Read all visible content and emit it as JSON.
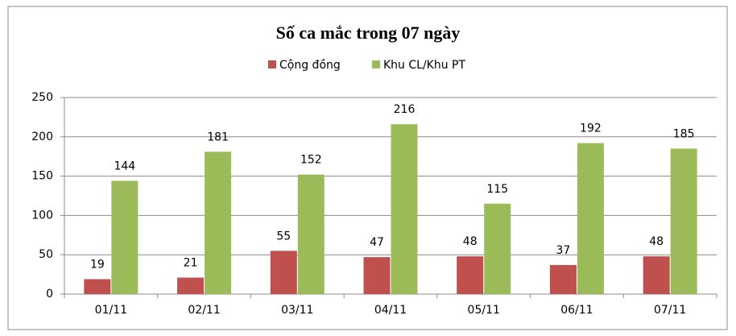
{
  "chart_data": {
    "type": "bar",
    "title": "Số ca mắc trong 07 ngày",
    "categories": [
      "01/11",
      "02/11",
      "03/11",
      "04/11",
      "05/11",
      "06/11",
      "07/11"
    ],
    "series": [
      {
        "name": "Cộng đồng",
        "color": "#c0504d",
        "values": [
          19,
          21,
          55,
          47,
          48,
          37,
          48
        ]
      },
      {
        "name": "Khu CL/Khu PT",
        "color": "#9bbb59",
        "values": [
          144,
          181,
          152,
          216,
          115,
          192,
          185
        ]
      }
    ],
    "ylim": [
      0,
      250
    ],
    "yticks": [
      0,
      50,
      100,
      150,
      200,
      250
    ],
    "grid": true,
    "legend": "top"
  }
}
